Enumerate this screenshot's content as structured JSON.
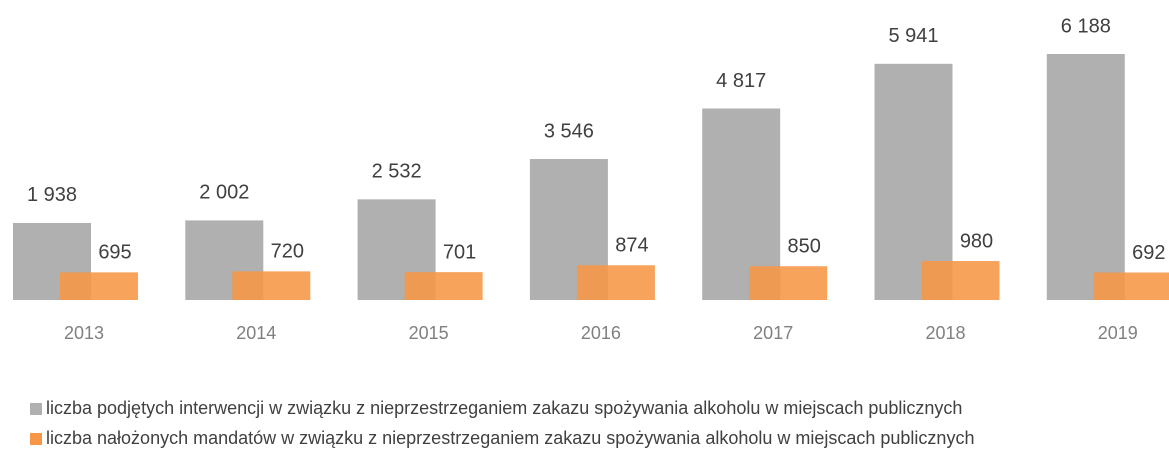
{
  "chart_data": {
    "type": "bar",
    "categories": [
      "2013",
      "2014",
      "2015",
      "2016",
      "2017",
      "2018",
      "2019"
    ],
    "series": [
      {
        "name": "liczba podjętych interwencji w związku z nieprzestrzeganiem zakazu spożywania alkoholu w miejscach publicznych",
        "color": "#b0b0b0",
        "values": [
          1938,
          2002,
          2532,
          3546,
          4817,
          5941,
          6188
        ],
        "value_labels": [
          "1 938",
          "2 002",
          "2 532",
          "3 546",
          "4 817",
          "5 941",
          "6 188"
        ]
      },
      {
        "name": "liczba nałożonych mandatów w związku z nieprzestrzeganiem zakazu spożywania alkoholu w miejscach publicznych",
        "color": "#f79646",
        "values": [
          695,
          720,
          701,
          874,
          850,
          980,
          692
        ]
      }
    ],
    "legend": "bottom-left"
  }
}
